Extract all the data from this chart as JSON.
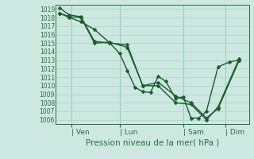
{
  "title": "",
  "xlabel": "Pression niveau de la mer( hPa )",
  "background_color": "#cce8e0",
  "grid_color": "#aad4c8",
  "line_color": "#1a5c2a",
  "marker_color": "#1a5c2a",
  "ylim": [
    1005.5,
    1019.5
  ],
  "yticks": [
    1006,
    1007,
    1008,
    1009,
    1010,
    1011,
    1012,
    1013,
    1014,
    1015,
    1016,
    1017,
    1018,
    1019
  ],
  "x_ticks_labels": [
    "| Ven",
    "| Lun",
    "| Sam",
    "| Dim"
  ],
  "x_ticks_pos": [
    0.08,
    0.33,
    0.66,
    0.88
  ],
  "xlim": [
    0.0,
    1.0
  ],
  "lines": [
    {
      "x": [
        0.02,
        0.07,
        0.13,
        0.2,
        0.28,
        0.33,
        0.37,
        0.41,
        0.45,
        0.49,
        0.53,
        0.57,
        0.62,
        0.66,
        0.7,
        0.74,
        0.78,
        0.84,
        0.9,
        0.95
      ],
      "y": [
        1019.1,
        1018.3,
        1018.1,
        1015.2,
        1015.0,
        1013.8,
        1011.8,
        1009.8,
        1009.3,
        1009.2,
        1011.1,
        1010.5,
        1008.5,
        1008.7,
        1006.2,
        1006.2,
        1007.0,
        1012.2,
        1012.8,
        1013.0
      ],
      "linewidth": 1.0,
      "markersize": 2.5
    },
    {
      "x": [
        0.02,
        0.07,
        0.13,
        0.2,
        0.28,
        0.37,
        0.45,
        0.53,
        0.62,
        0.7,
        0.78,
        0.84,
        0.95
      ],
      "y": [
        1018.5,
        1018.1,
        1018.0,
        1015.0,
        1015.1,
        1014.5,
        1010.0,
        1010.4,
        1008.8,
        1008.0,
        1006.2,
        1007.3,
        1013.0
      ],
      "linewidth": 1.0,
      "markersize": 2.5
    },
    {
      "x": [
        0.02,
        0.07,
        0.13,
        0.2,
        0.28,
        0.37,
        0.45,
        0.53,
        0.62,
        0.7,
        0.78,
        0.84,
        0.95
      ],
      "y": [
        1018.5,
        1018.0,
        1017.5,
        1016.6,
        1015.0,
        1014.8,
        1010.0,
        1010.0,
        1008.0,
        1007.8,
        1006.0,
        1007.5,
        1013.2
      ],
      "linewidth": 1.0,
      "markersize": 2.5
    }
  ]
}
